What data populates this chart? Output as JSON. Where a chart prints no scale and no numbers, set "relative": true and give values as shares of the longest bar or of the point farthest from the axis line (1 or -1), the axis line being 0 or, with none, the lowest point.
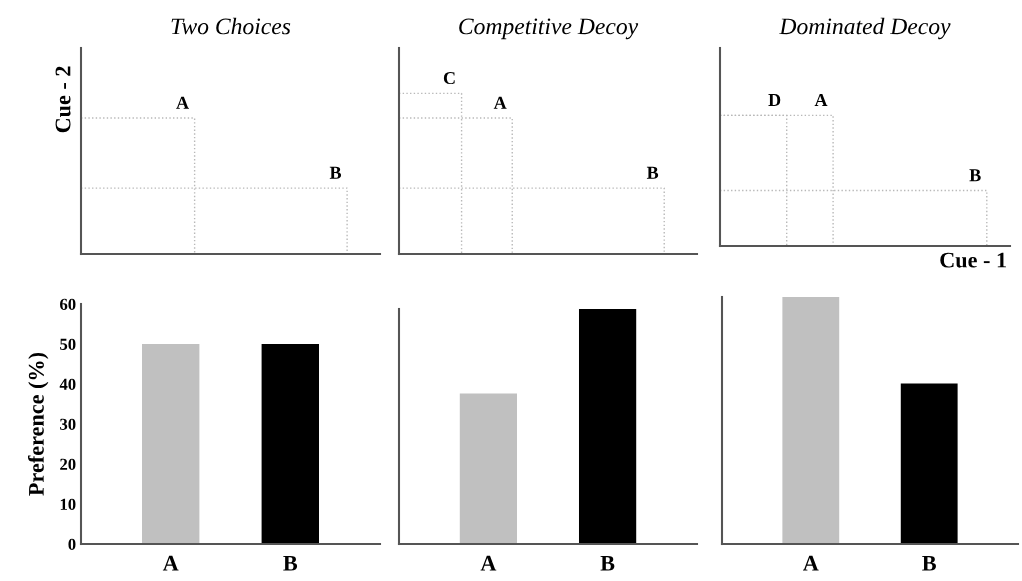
{
  "chart_data": [
    {
      "type": "other",
      "title": "Two Choices",
      "ylabel": "Cue - 2",
      "annotations": [
        "A",
        "B"
      ]
    },
    {
      "type": "other",
      "title": "Competitive Decoy",
      "annotations": [
        "C",
        "A",
        "B"
      ]
    },
    {
      "type": "other",
      "title": "Dominated Decoy",
      "xlabel": "Cue - 1",
      "annotations": [
        "D",
        "A",
        "B"
      ]
    },
    {
      "type": "bar",
      "ylabel": "Preference (%)",
      "categories": [
        "A",
        "B"
      ],
      "values": [
        50,
        50
      ],
      "colors": [
        "#c0c0c0",
        "#000000"
      ],
      "ylim": [
        0,
        60
      ],
      "yticks": [
        0,
        10,
        20,
        30,
        40,
        50,
        60
      ]
    },
    {
      "type": "bar",
      "categories": [
        "A",
        "B"
      ],
      "values": [
        0.64,
        1
      ],
      "colors": [
        "#c0c0c0",
        "#000000"
      ],
      "relative": true
    },
    {
      "type": "bar",
      "categories": [
        "A",
        "B"
      ],
      "values": [
        1,
        0.65
      ],
      "colors": [
        "#c0c0c0",
        "#000000"
      ],
      "relative": true
    }
  ]
}
